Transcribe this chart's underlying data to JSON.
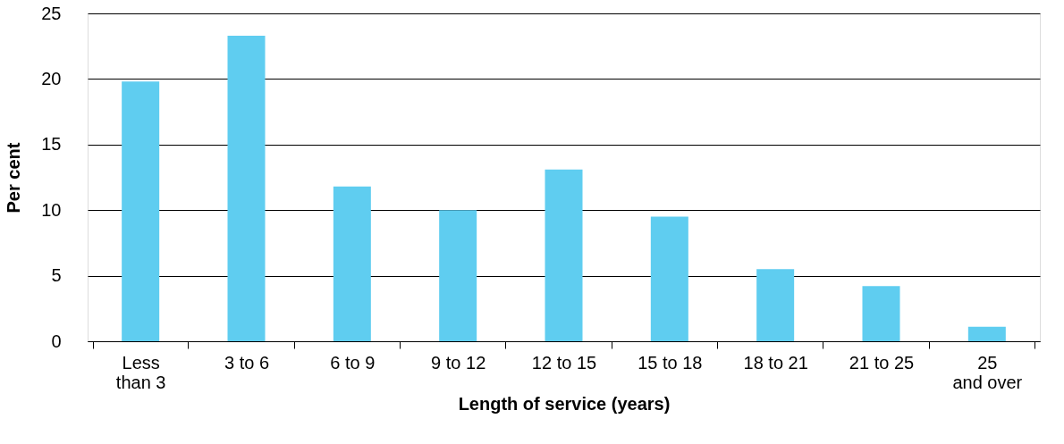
{
  "chart_data": {
    "type": "bar",
    "xlabel": "Length of service (years)",
    "ylabel": "Per cent",
    "categories": [
      "Less than 3",
      "3 to 6",
      "6 to 9",
      "9 to 12",
      "12 to 15",
      "15 to 18",
      "18 to 21",
      "21 to 25",
      "25 and over"
    ],
    "values": [
      19.8,
      23.3,
      11.8,
      10.0,
      13.1,
      9.5,
      5.5,
      4.2,
      1.1
    ],
    "color": "#5fcdf0",
    "ylim": [
      0,
      25
    ],
    "yticks": [
      0,
      5,
      10,
      15,
      20,
      25
    ],
    "grid": "y"
  }
}
